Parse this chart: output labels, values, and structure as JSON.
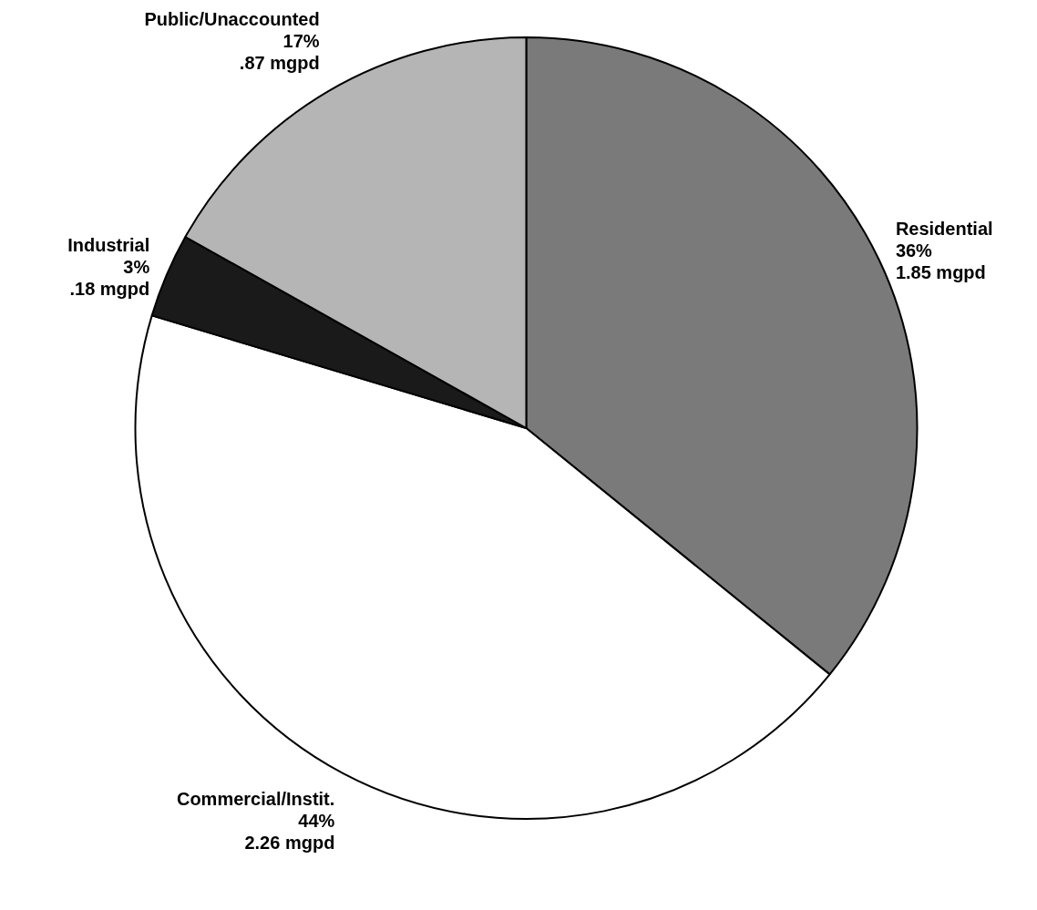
{
  "chart_data": {
    "type": "pie",
    "categories": [
      "Residential",
      "Commercial/Instit.",
      "Industrial",
      "Public/Unaccounted"
    ],
    "values": [
      1.85,
      2.26,
      0.18,
      0.87
    ],
    "colors": [
      "#7a7a7a",
      "#ffffff",
      "#1a1a1a",
      "#b5b5b5"
    ],
    "value_labels": [
      "36%\n1.85 mgpd",
      "44%\n2.26 mgpd",
      "3%\n.18 mgpd",
      "17%\n.87 mgpd"
    ]
  }
}
